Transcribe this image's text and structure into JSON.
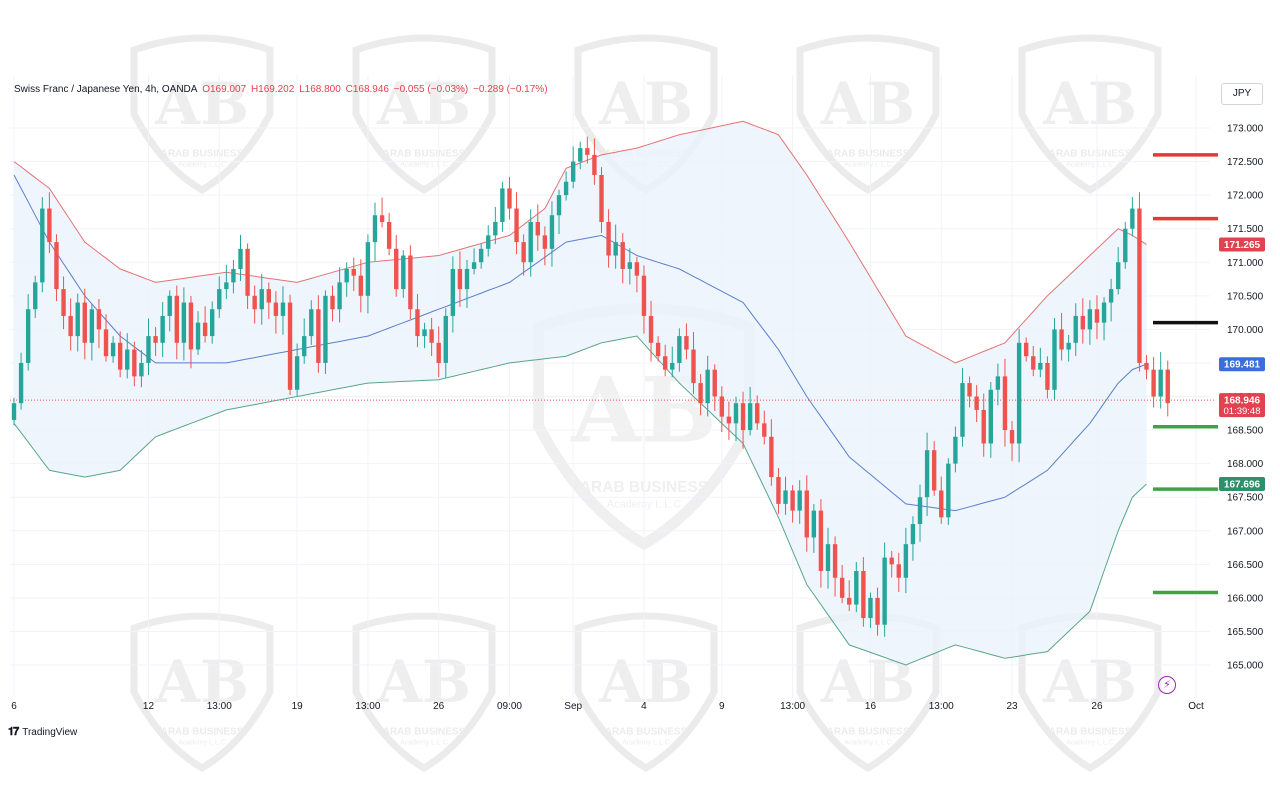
{
  "legend": {
    "symbol": "Swiss Franc / Japanese Yen, 4h, OANDA",
    "open": "O169.007",
    "high": "H169.202",
    "low": "L168.800",
    "close": "C168.946",
    "change": "−0.055 (−0.03%)",
    "change2": "−0.289 (−0.17%)"
  },
  "currency": "JPY",
  "brand": {
    "logo": "𝟏𝟕",
    "name": "TradingView"
  },
  "watermark": {
    "line1": "ARAB BUSINESS",
    "line2": "Academy L.L.C"
  },
  "price_labels": {
    "upper_band": "171.265",
    "middle_band": "169.481",
    "last_price": "168.946",
    "countdown": "01:39:48",
    "lower_band": "167.696"
  },
  "colors": {
    "up": "#26a69a",
    "down": "#ef5350",
    "upper_band": "#e57373",
    "middle_band": "#5b7fcc",
    "lower_band": "#5aa58a",
    "band_fill": "#eaf3fb",
    "level_red": "#e53935",
    "level_black": "#111111",
    "level_green": "#43a047"
  },
  "chart_data": {
    "type": "candlestick",
    "indicator": "Bollinger Bands",
    "y_ticks": [
      "173.000",
      "172.500",
      "172.000",
      "171.500",
      "171.000",
      "170.500",
      "170.000",
      "169.500",
      "169.000",
      "168.500",
      "168.000",
      "167.500",
      "167.000",
      "166.500",
      "166.000",
      "165.500",
      "165.000"
    ],
    "x_ticks": [
      {
        "label": "6",
        "c": 0
      },
      {
        "label": "12",
        "c": 19
      },
      {
        "label": "13:00",
        "c": 29
      },
      {
        "label": "19",
        "c": 40
      },
      {
        "label": "13:00",
        "c": 50
      },
      {
        "label": "26",
        "c": 60
      },
      {
        "label": "09:00",
        "c": 70
      },
      {
        "label": "Sep",
        "c": 79
      },
      {
        "label": "4",
        "c": 89
      },
      {
        "label": "9",
        "c": 100
      },
      {
        "label": "13:00",
        "c": 110
      },
      {
        "label": "16",
        "c": 121
      },
      {
        "label": "13:00",
        "c": 131
      },
      {
        "label": "23",
        "c": 141
      },
      {
        "label": "26",
        "c": 153
      },
      {
        "label": "Oct",
        "c": 167
      }
    ],
    "ylim": [
      164.72,
      173.22
    ],
    "levels": [
      {
        "price": 172.6,
        "color": "red"
      },
      {
        "price": 171.65,
        "color": "red"
      },
      {
        "price": 170.1,
        "color": "black"
      },
      {
        "price": 168.55,
        "color": "green"
      },
      {
        "price": 167.62,
        "color": "green"
      },
      {
        "price": 166.08,
        "color": "green"
      }
    ],
    "last_price": 168.946,
    "closes": [
      168.9,
      169.5,
      170.3,
      170.7,
      171.8,
      171.3,
      170.6,
      170.2,
      169.9,
      170.4,
      169.8,
      170.3,
      170.0,
      169.6,
      169.8,
      169.4,
      169.7,
      169.3,
      169.5,
      169.9,
      169.8,
      170.2,
      170.5,
      169.8,
      170.4,
      169.7,
      170.1,
      169.9,
      170.3,
      170.6,
      170.7,
      170.9,
      171.2,
      170.5,
      170.3,
      170.6,
      170.4,
      170.2,
      170.4,
      169.1,
      169.6,
      169.9,
      170.3,
      169.5,
      170.5,
      170.3,
      170.7,
      170.9,
      170.8,
      170.5,
      171.3,
      171.7,
      171.6,
      171.2,
      170.6,
      171.1,
      170.3,
      169.9,
      170.0,
      169.8,
      169.5,
      170.2,
      170.9,
      170.6,
      170.9,
      171.0,
      171.2,
      171.4,
      171.6,
      172.1,
      171.8,
      171.3,
      171.0,
      171.6,
      171.4,
      171.2,
      171.7,
      172.0,
      172.2,
      172.5,
      172.7,
      172.6,
      172.3,
      171.6,
      171.1,
      171.3,
      170.9,
      171.0,
      170.8,
      170.2,
      169.8,
      169.6,
      169.4,
      169.5,
      169.9,
      169.7,
      169.2,
      168.9,
      169.4,
      169.0,
      168.7,
      168.6,
      168.9,
      168.5,
      168.9,
      168.6,
      168.4,
      167.8,
      167.4,
      167.6,
      167.3,
      167.6,
      166.9,
      167.3,
      166.4,
      166.8,
      166.3,
      166.0,
      165.9,
      166.4,
      165.7,
      166.0,
      165.6,
      166.6,
      166.5,
      166.3,
      166.8,
      167.1,
      167.5,
      168.2,
      167.6,
      167.2,
      168.0,
      168.4,
      169.2,
      169.0,
      168.8,
      168.3,
      169.1,
      169.3,
      168.5,
      168.3,
      169.8,
      169.6,
      169.4,
      169.5,
      169.1,
      170.0,
      169.7,
      169.8,
      170.2,
      170.0,
      170.3,
      170.1,
      170.4,
      170.6,
      171.0,
      171.5,
      171.8,
      169.5,
      169.4,
      169.0,
      169.4,
      168.9
    ],
    "upper_band": [
      [
        0,
        172.5
      ],
      [
        5,
        172.1
      ],
      [
        10,
        171.3
      ],
      [
        15,
        170.9
      ],
      [
        20,
        170.7
      ],
      [
        30,
        170.85
      ],
      [
        40,
        170.7
      ],
      [
        50,
        171.0
      ],
      [
        60,
        171.1
      ],
      [
        70,
        171.4
      ],
      [
        75,
        171.8
      ],
      [
        78,
        172.4
      ],
      [
        83,
        172.6
      ],
      [
        88,
        172.7
      ],
      [
        94,
        172.9
      ],
      [
        103,
        173.1
      ],
      [
        108,
        172.9
      ],
      [
        112,
        172.3
      ],
      [
        118,
        171.3
      ],
      [
        126,
        169.9
      ],
      [
        133,
        169.5
      ],
      [
        140,
        169.8
      ],
      [
        146,
        170.5
      ],
      [
        152,
        171.1
      ],
      [
        156,
        171.5
      ],
      [
        158,
        171.4
      ],
      [
        160,
        171.265
      ]
    ],
    "middle_band": [
      [
        0,
        172.3
      ],
      [
        5,
        171.3
      ],
      [
        10,
        170.5
      ],
      [
        15,
        169.9
      ],
      [
        20,
        169.5
      ],
      [
        30,
        169.5
      ],
      [
        40,
        169.7
      ],
      [
        50,
        169.9
      ],
      [
        60,
        170.3
      ],
      [
        70,
        170.7
      ],
      [
        78,
        171.3
      ],
      [
        83,
        171.4
      ],
      [
        88,
        171.1
      ],
      [
        94,
        170.9
      ],
      [
        103,
        170.4
      ],
      [
        108,
        169.7
      ],
      [
        112,
        169.0
      ],
      [
        118,
        168.1
      ],
      [
        126,
        167.4
      ],
      [
        133,
        167.3
      ],
      [
        140,
        167.5
      ],
      [
        146,
        167.9
      ],
      [
        152,
        168.6
      ],
      [
        156,
        169.2
      ],
      [
        158,
        169.4
      ],
      [
        160,
        169.481
      ]
    ],
    "lower_band": [
      [
        0,
        168.6
      ],
      [
        5,
        167.9
      ],
      [
        10,
        167.8
      ],
      [
        15,
        167.9
      ],
      [
        20,
        168.4
      ],
      [
        30,
        168.8
      ],
      [
        40,
        169.0
      ],
      [
        50,
        169.2
      ],
      [
        60,
        169.25
      ],
      [
        70,
        169.5
      ],
      [
        78,
        169.6
      ],
      [
        83,
        169.8
      ],
      [
        88,
        169.9
      ],
      [
        94,
        169.2
      ],
      [
        103,
        168.3
      ],
      [
        108,
        167.2
      ],
      [
        112,
        166.2
      ],
      [
        118,
        165.3
      ],
      [
        126,
        165.0
      ],
      [
        133,
        165.3
      ],
      [
        140,
        165.1
      ],
      [
        146,
        165.2
      ],
      [
        152,
        165.8
      ],
      [
        156,
        167.0
      ],
      [
        158,
        167.5
      ],
      [
        160,
        167.696
      ]
    ]
  }
}
